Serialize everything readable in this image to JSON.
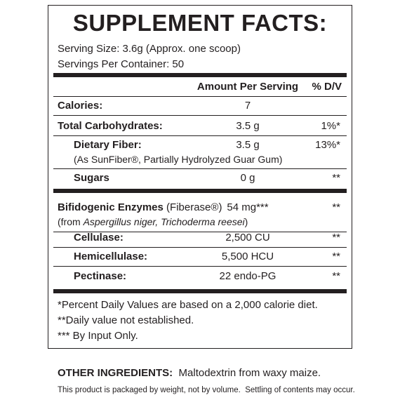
{
  "title": "SUPPLEMENT FACTS:",
  "serving_size": "Serving Size: 3.6g (Approx. one scoop)",
  "servings_per_container": "Servings Per Container: 50",
  "table": {
    "header": {
      "amount": "Amount Per Serving",
      "dv": "% D/V"
    },
    "rows": [
      {
        "name": "Calories:",
        "amount": "7"
      },
      {
        "name": "Total Carbohydrates:",
        "amount": "3.5 g",
        "dv": "1%*"
      },
      {
        "name": "Dietary Fiber:",
        "amount": "3.5 g",
        "dv": "13%*",
        "sub": "(As SunFiber®, Partially Hydrolyzed Guar Gum)"
      },
      {
        "name": "Sugars",
        "amount": "0 g",
        "dv": "**"
      },
      {
        "name": "Bifidogenic Enzymes",
        "name_note": "(Fiberase®)",
        "amount": "54 mg***",
        "dv": "**",
        "sub": [
          "(from ",
          "Aspergillus niger, Trichoderma reesei",
          ")"
        ]
      },
      {
        "name": "Cellulase:",
        "amount": "2,500 CU",
        "dv": "**"
      },
      {
        "name": "Hemicellulase:",
        "amount": "5,500 HCU",
        "dv": "**"
      },
      {
        "name": "Pectinase:",
        "amount": "22 endo-PG",
        "dv": "**"
      }
    ]
  },
  "footnotes": [
    "*Percent Daily Values are based on a 2,000 calorie diet.",
    "**Daily value not established.",
    "*** By Input Only."
  ],
  "other_ingredients": {
    "label": "OTHER INGREDIENTS:",
    "text": "Maltodextrin from waxy maize."
  },
  "note": "This product is packaged by weight, not by volume.  Settling of contents may occur."
}
